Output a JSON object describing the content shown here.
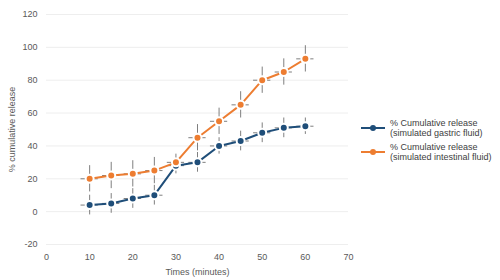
{
  "chart_data": {
    "type": "line",
    "x_label": "Times (minutes)",
    "y_label": "% cumulative release",
    "x": [
      10,
      15,
      20,
      25,
      30,
      35,
      40,
      45,
      50,
      55,
      60
    ],
    "series": [
      {
        "name": "% Cumulative release (simulated gastric fluid)",
        "color": "#1f4e79",
        "marker": "circle",
        "values": [
          4,
          5,
          8,
          10,
          28,
          30,
          40,
          43,
          48,
          51,
          52
        ],
        "errors": [
          6,
          6,
          6,
          6,
          5,
          6,
          5,
          6,
          6,
          6,
          5
        ],
        "x_errors": [
          2,
          2,
          2,
          2,
          2,
          2,
          2,
          2,
          2,
          2,
          2
        ]
      },
      {
        "name": "% Cumulative release (simulated intestinal fluid)",
        "color": "#ed7d31",
        "marker": "circle",
        "values": [
          20,
          22,
          23,
          25,
          30,
          45,
          55,
          65,
          80,
          85,
          93
        ],
        "errors": [
          8,
          8,
          8,
          8,
          5,
          8,
          8,
          8,
          8,
          8,
          8
        ],
        "x_errors": [
          2,
          2,
          2,
          2,
          2,
          2,
          2,
          2,
          2,
          2,
          2
        ]
      }
    ],
    "xlim": [
      0,
      70
    ],
    "xticks": [
      0,
      10,
      20,
      30,
      40,
      50,
      60,
      70
    ],
    "ylim": [
      -20,
      120
    ],
    "yticks": [
      -20,
      0,
      20,
      40,
      60,
      80,
      100,
      120
    ],
    "grid": true,
    "legend": "right"
  }
}
